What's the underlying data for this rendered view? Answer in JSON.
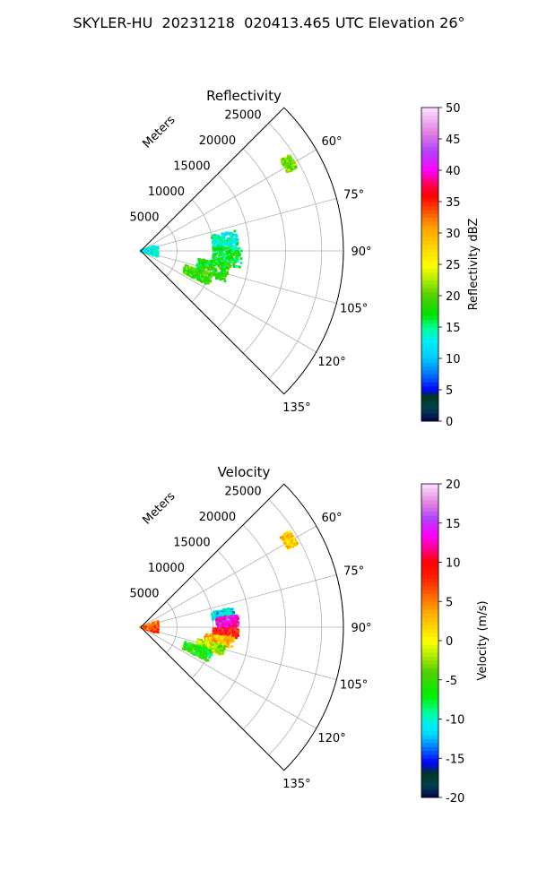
{
  "suptitle": "SKYLER-HU  20231218  020413.465 UTC Elevation 26°",
  "chart_data": [
    {
      "type": "heatmap",
      "projection": "polar-sector",
      "title": "Reflectivity",
      "range_axis_label": "Meters",
      "range_ticks": [
        5000,
        10000,
        15000,
        20000,
        25000
      ],
      "range_lim": [
        0,
        28000
      ],
      "azimuth_lim_deg": [
        45,
        135
      ],
      "azimuth_ticks_deg": [
        60,
        75,
        90,
        105,
        120,
        135
      ],
      "grid": true,
      "colorbar": {
        "label": "Reflectivity dBZ",
        "min": 0,
        "max": 50,
        "ticks": [
          0,
          5,
          10,
          15,
          20,
          25,
          30,
          35,
          40,
          45,
          50
        ]
      },
      "echo_bands": [
        {
          "az_start": 78,
          "az_end": 90,
          "r_start": 10000,
          "r_end": 13500,
          "value": 14
        },
        {
          "az_start": 88,
          "az_end": 100,
          "r_start": 10000,
          "r_end": 14000,
          "value": 17
        },
        {
          "az_start": 98,
          "az_end": 110,
          "r_start": 8000,
          "r_end": 12500,
          "value": 18
        },
        {
          "az_start": 108,
          "az_end": 117,
          "r_start": 6500,
          "r_end": 10500,
          "value": 19
        },
        {
          "az_start": 70,
          "az_end": 110,
          "r_start": 0,
          "r_end": 2500,
          "value": 13
        },
        {
          "az_start": 57,
          "az_end": 62,
          "r_start": 23000,
          "r_end": 24500,
          "value": 21
        }
      ]
    },
    {
      "type": "heatmap",
      "projection": "polar-sector",
      "title": "Velocity",
      "range_axis_label": "Meters",
      "range_ticks": [
        5000,
        10000,
        15000,
        20000,
        25000
      ],
      "range_lim": [
        0,
        28000
      ],
      "azimuth_lim_deg": [
        45,
        135
      ],
      "azimuth_ticks_deg": [
        60,
        75,
        90,
        105,
        120,
        135
      ],
      "grid": true,
      "colorbar": {
        "label": "Velocity (m/s)",
        "min": -20,
        "max": 20,
        "ticks": [
          -20,
          -15,
          -10,
          -5,
          0,
          5,
          10,
          15,
          20
        ]
      },
      "echo_bands": [
        {
          "az_start": 78,
          "az_end": 84,
          "r_start": 10000,
          "r_end": 13000,
          "value": -11
        },
        {
          "az_start": 83,
          "az_end": 92,
          "r_start": 10500,
          "r_end": 13500,
          "value": 13
        },
        {
          "az_start": 91,
          "az_end": 97,
          "r_start": 10000,
          "r_end": 13500,
          "value": 9
        },
        {
          "az_start": 96,
          "az_end": 103,
          "r_start": 9000,
          "r_end": 13000,
          "value": 3
        },
        {
          "az_start": 102,
          "az_end": 109,
          "r_start": 8000,
          "r_end": 12000,
          "value": -2
        },
        {
          "az_start": 108,
          "az_end": 117,
          "r_start": 6500,
          "r_end": 10500,
          "value": -6
        },
        {
          "az_start": 70,
          "az_end": 110,
          "r_start": 0,
          "r_end": 2500,
          "value": 6
        },
        {
          "az_start": 57,
          "az_end": 62,
          "r_start": 23000,
          "r_end": 24500,
          "value": 2
        }
      ]
    }
  ]
}
